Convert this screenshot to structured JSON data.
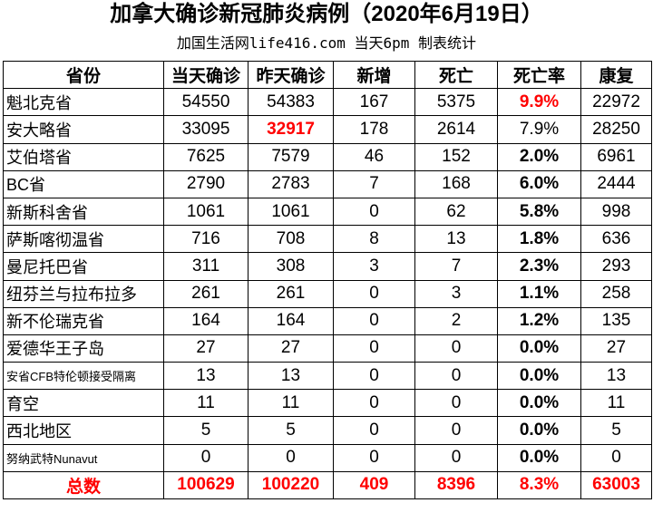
{
  "header": {
    "title": "加拿大确诊新冠肺炎病例（2020年6月19日）",
    "subtitle": "加国生活网life416.com 当天6pm 制表统计"
  },
  "table": {
    "columns": [
      "省份",
      "当天确诊",
      "昨天确诊",
      "新增",
      "死亡",
      "死亡率",
      "康复"
    ],
    "rows": [
      [
        "魁北克省",
        "54550",
        "54383",
        "167",
        "5375",
        "9.9%",
        "22972"
      ],
      [
        "安大略省",
        "33095",
        "32917",
        "178",
        "2614",
        "7.9%",
        "28250"
      ],
      [
        "艾伯塔省",
        "7625",
        "7579",
        "46",
        "152",
        "2.0%",
        "6961"
      ],
      [
        "BC省",
        "2790",
        "2783",
        "7",
        "168",
        "6.0%",
        "2444"
      ],
      [
        "新斯科舍省",
        "1061",
        "1061",
        "0",
        "62",
        "5.8%",
        "998"
      ],
      [
        "萨斯喀彻温省",
        "716",
        "708",
        "8",
        "13",
        "1.8%",
        "636"
      ],
      [
        "曼尼托巴省",
        "311",
        "308",
        "3",
        "7",
        "2.3%",
        "293"
      ],
      [
        "纽芬兰与拉布拉多",
        "261",
        "261",
        "0",
        "3",
        "1.1%",
        "258"
      ],
      [
        "新不伦瑞克省",
        "164",
        "164",
        "0",
        "2",
        "1.2%",
        "135"
      ],
      [
        "爱德华王子岛",
        "27",
        "27",
        "0",
        "0",
        "0.0%",
        "27"
      ],
      [
        "安省CFB特伦顿接受隔离",
        "13",
        "13",
        "0",
        "0",
        "0.0%",
        "13"
      ],
      [
        "育空",
        "11",
        "11",
        "0",
        "0",
        "0.0%",
        "11"
      ],
      [
        "西北地区",
        "5",
        "5",
        "0",
        "0",
        "0.0%",
        "5"
      ],
      [
        "努纳武特Nunavut",
        "0",
        "0",
        "0",
        "0",
        "0.0%",
        "0"
      ]
    ],
    "total": [
      "总数",
      "100629",
      "100220",
      "409",
      "8396",
      "8.3%",
      "63003"
    ]
  }
}
